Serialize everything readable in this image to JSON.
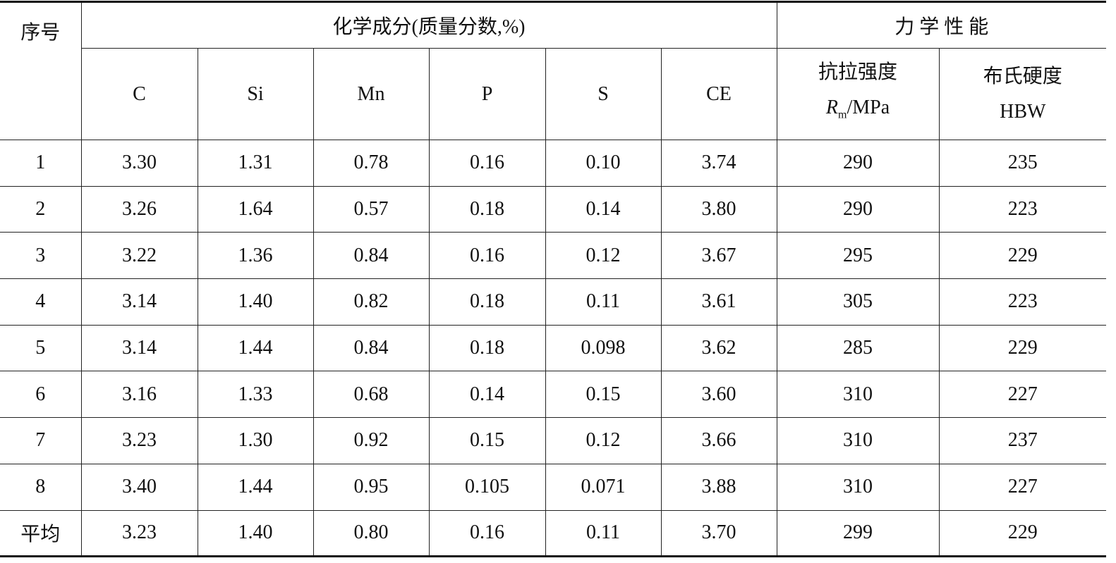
{
  "table": {
    "header": {
      "index": "序号",
      "chem_group": "化学成分(质量分数,%)",
      "mech_group": "力 学 性 能",
      "chem_columns": [
        "C",
        "Si",
        "Mn",
        "P",
        "S",
        "CE"
      ],
      "tensile": {
        "name": "抗拉强度",
        "symbol": "R",
        "subscript": "m",
        "unit": "/MPa"
      },
      "hardness": {
        "name": "布氏硬度",
        "unit": "HBW"
      }
    },
    "rows": [
      [
        "1",
        "3.30",
        "1.31",
        "0.78",
        "0.16",
        "0.10",
        "3.74",
        "290",
        "235"
      ],
      [
        "2",
        "3.26",
        "1.64",
        "0.57",
        "0.18",
        "0.14",
        "3.80",
        "290",
        "223"
      ],
      [
        "3",
        "3.22",
        "1.36",
        "0.84",
        "0.16",
        "0.12",
        "3.67",
        "295",
        "229"
      ],
      [
        "4",
        "3.14",
        "1.40",
        "0.82",
        "0.18",
        "0.11",
        "3.61",
        "305",
        "223"
      ],
      [
        "5",
        "3.14",
        "1.44",
        "0.84",
        "0.18",
        "0.098",
        "3.62",
        "285",
        "229"
      ],
      [
        "6",
        "3.16",
        "1.33",
        "0.68",
        "0.14",
        "0.15",
        "3.60",
        "310",
        "227"
      ],
      [
        "7",
        "3.23",
        "1.30",
        "0.92",
        "0.15",
        "0.12",
        "3.66",
        "310",
        "237"
      ],
      [
        "8",
        "3.40",
        "1.44",
        "0.95",
        "0.105",
        "0.071",
        "3.88",
        "310",
        "227"
      ],
      [
        "平均",
        "3.23",
        "1.40",
        "0.80",
        "0.16",
        "0.11",
        "3.70",
        "299",
        "229"
      ]
    ]
  }
}
